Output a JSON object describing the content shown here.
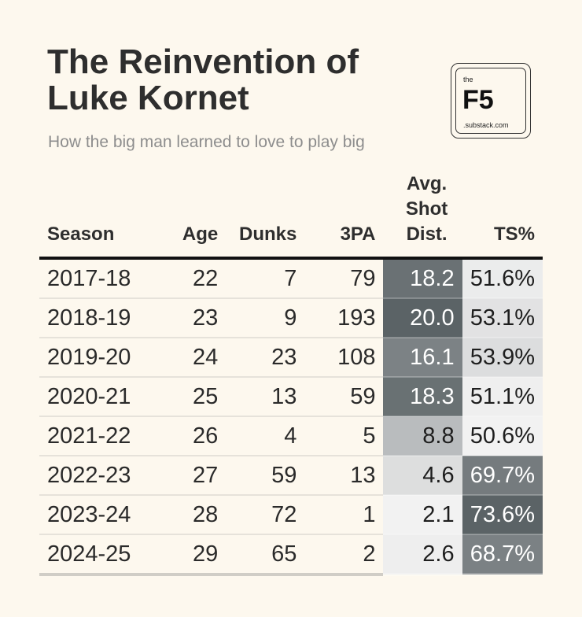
{
  "header": {
    "title": "The Reinvention of Luke Kornet",
    "subtitle": "How the big man learned to love to play big"
  },
  "logo": {
    "top": "the",
    "main": "F5",
    "bottom": ".substack.com"
  },
  "columns": [
    "Season",
    "Age",
    "Dunks",
    "3PA",
    "Avg. Shot Dist.",
    "TS%"
  ],
  "colors": {
    "background": "#fdf8ee",
    "heat_low": "#f2f2f2",
    "heat_high": "#5b6366"
  },
  "chart_data": {
    "type": "table",
    "title": "The Reinvention of Luke Kornet",
    "subtitle": "How the big man learned to love to play big",
    "columns": [
      "Season",
      "Age",
      "Dunks",
      "3PA",
      "Avg. Shot Dist.",
      "TS%"
    ],
    "rows": [
      {
        "season": "2017-18",
        "age": "22",
        "dunks": "7",
        "tpa": "79",
        "dist": "18.2",
        "ts": "51.6%"
      },
      {
        "season": "2018-19",
        "age": "23",
        "dunks": "9",
        "tpa": "193",
        "dist": "20.0",
        "ts": "53.1%"
      },
      {
        "season": "2019-20",
        "age": "24",
        "dunks": "23",
        "tpa": "108",
        "dist": "16.1",
        "ts": "53.9%"
      },
      {
        "season": "2020-21",
        "age": "25",
        "dunks": "13",
        "tpa": "59",
        "dist": "18.3",
        "ts": "51.1%"
      },
      {
        "season": "2021-22",
        "age": "26",
        "dunks": "4",
        "tpa": "5",
        "dist": "8.8",
        "ts": "50.6%"
      },
      {
        "season": "2022-23",
        "age": "27",
        "dunks": "59",
        "tpa": "13",
        "dist": "4.6",
        "ts": "69.7%"
      },
      {
        "season": "2023-24",
        "age": "28",
        "dunks": "72",
        "tpa": "1",
        "dist": "2.1",
        "ts": "73.6%"
      },
      {
        "season": "2024-25",
        "age": "29",
        "dunks": "65",
        "tpa": "2",
        "dist": "2.6",
        "ts": "68.7%"
      }
    ],
    "heatmap_columns": [
      "Avg. Shot Dist.",
      "TS%"
    ]
  }
}
